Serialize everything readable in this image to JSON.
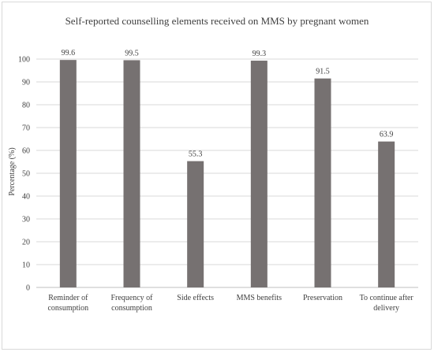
{
  "chart_data": {
    "type": "bar",
    "title": "Self-reported counselling elements received on MMS by pregnant women",
    "xlabel": "",
    "ylabel": "Percentage (%)",
    "ylim": [
      0,
      100
    ],
    "yticks": [
      0,
      10,
      20,
      30,
      40,
      50,
      60,
      70,
      80,
      90,
      100
    ],
    "grid": true,
    "legend": "none",
    "bar_color": "#767171",
    "categories": [
      [
        "Reminder of",
        "consumption"
      ],
      [
        "Frequency of",
        "consumption"
      ],
      [
        "Side effects"
      ],
      [
        "MMS benefits"
      ],
      [
        "Preservation"
      ],
      [
        "To continue after",
        "delivery"
      ]
    ],
    "values": [
      99.6,
      99.5,
      55.3,
      99.3,
      91.5,
      63.9
    ],
    "data_labels": [
      "99.6",
      "99.5",
      "55.3",
      "99.3",
      "91.5",
      "63.9"
    ]
  }
}
